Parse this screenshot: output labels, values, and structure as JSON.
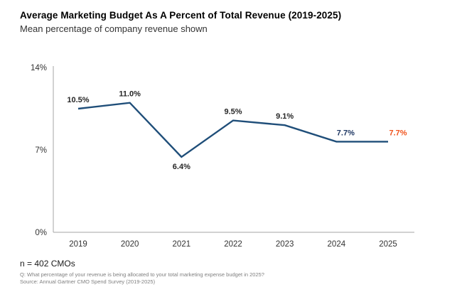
{
  "header": {
    "title": "Average Marketing Budget As A Percent of Total Revenue (2019-2025)",
    "subtitle": "Mean percentage of company revenue shown"
  },
  "chart_data": {
    "type": "line",
    "title": "Average Marketing Budget As A Percent of Total Revenue (2019-2025)",
    "subtitle": "Mean percentage of company revenue shown",
    "categories": [
      "2019",
      "2020",
      "2021",
      "2022",
      "2023",
      "2024",
      "2025"
    ],
    "values": [
      10.5,
      11.0,
      6.4,
      9.5,
      9.1,
      7.7,
      7.7
    ],
    "point_labels": [
      "10.5%",
      "11.0%",
      "6.4%",
      "9.5%",
      "9.1%",
      "7.7%",
      "7.7%"
    ],
    "label_positions": [
      "above",
      "above",
      "below",
      "above",
      "above",
      "above",
      "above"
    ],
    "label_colors": [
      "#262626",
      "#262626",
      "#262626",
      "#262626",
      "#262626",
      "#1F3864",
      "#F0541E"
    ],
    "line_color": "#1F4E79",
    "axis_color": "#A6A6A6",
    "tick_label_color": "#333333",
    "highlight_color": "#F0541E",
    "xlabel": "",
    "ylabel": "",
    "ylim": [
      0,
      14
    ],
    "yticks": [
      {
        "value": 0,
        "label": "0%"
      },
      {
        "value": 7,
        "label": "7%"
      },
      {
        "value": 14,
        "label": "14%"
      }
    ],
    "grid": false,
    "legend": false
  },
  "footer": {
    "sample": "n = 402 CMOs",
    "question": "Q: What percentage of your revenue is being allocated to your total marketing expense budget in 2025?",
    "source": "Source: Annual Gartner CMO Spend Survey (2019-2025)"
  }
}
